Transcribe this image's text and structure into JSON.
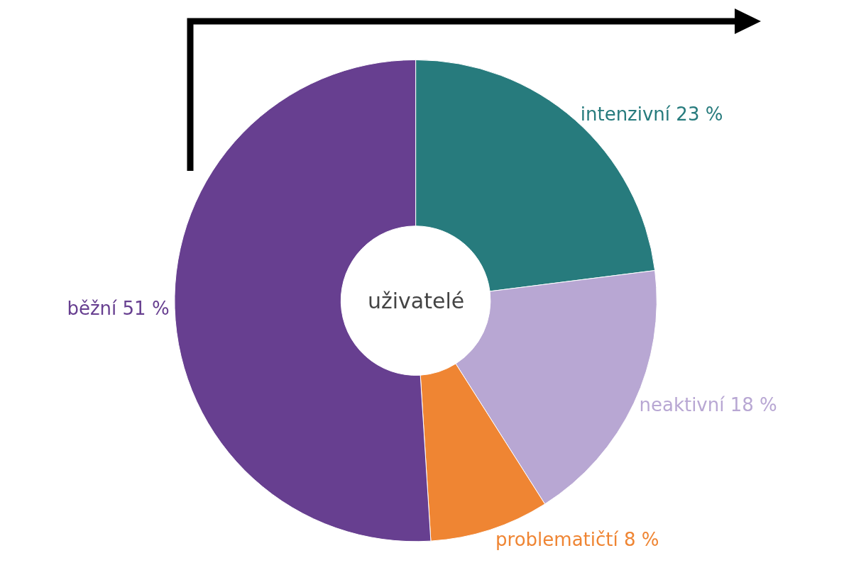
{
  "chart_data": {
    "type": "donut",
    "categories": [
      "intenzivní",
      "neaktivní",
      "problematičtí",
      "běžní"
    ],
    "values": [
      23,
      18,
      8,
      51
    ],
    "value_labels": [
      "23 %",
      "18 %",
      "8 %",
      "51 %"
    ],
    "colors": [
      "#277b7d",
      "#b8a7d3",
      "#ef8533",
      "#673f90"
    ],
    "annotations": [
      "uživatelé"
    ],
    "legend": false
  }
}
